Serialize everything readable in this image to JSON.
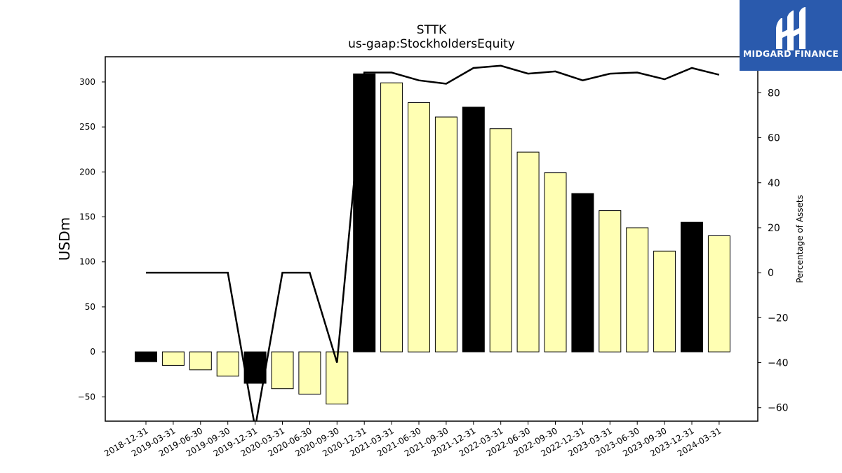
{
  "chart_data": {
    "type": "bar",
    "title": "STTK",
    "subtitle": "us-gaap:StockholdersEquity",
    "ylabel": "USDm",
    "ylabel_right": "Percentage of Assets",
    "ylim": [
      -77,
      328
    ],
    "ylim_right": [
      -66,
      96
    ],
    "yticks": [
      -50,
      0,
      50,
      100,
      150,
      200,
      250,
      300
    ],
    "yticks_right": [
      -60,
      -40,
      -20,
      0,
      20,
      40,
      60,
      80
    ],
    "categories": [
      "2018-12-31",
      "2019-03-31",
      "2019-06-30",
      "2019-09-30",
      "2019-12-31",
      "2020-03-31",
      "2020-06-30",
      "2020-09-30",
      "2020-12-31",
      "2021-03-31",
      "2021-06-30",
      "2021-09-30",
      "2021-12-31",
      "2022-03-31",
      "2022-06-30",
      "2022-09-30",
      "2022-12-31",
      "2023-03-31",
      "2023-06-30",
      "2023-09-30",
      "2023-12-31",
      "2024-03-31"
    ],
    "series": [
      {
        "type": "bar",
        "axis": "left",
        "values": [
          -11,
          -15,
          -20,
          -27,
          -35,
          -41,
          -47,
          -58,
          309,
          299,
          277,
          261,
          272,
          248,
          222,
          199,
          176,
          157,
          138,
          112,
          144,
          129
        ],
        "highlight": [
          true,
          false,
          false,
          false,
          true,
          false,
          false,
          false,
          true,
          false,
          false,
          false,
          true,
          false,
          false,
          false,
          true,
          false,
          false,
          false,
          true,
          false
        ]
      },
      {
        "type": "line",
        "axis": "right",
        "values": [
          0,
          0,
          0,
          0,
          -69,
          0,
          0,
          -40,
          89,
          89,
          85.5,
          84,
          91,
          92,
          88.5,
          89.5,
          85.5,
          88.5,
          89,
          86,
          91,
          88
        ]
      }
    ],
    "colors": {
      "bar_fill": "#ffffb3",
      "highlight_fill": "#000000",
      "bar_edge": "#000000",
      "line": "#000000"
    },
    "grid": false,
    "legend": "none"
  },
  "logo": {
    "text": "MIDGARD FINANCE",
    "background": "#2a5aad"
  }
}
